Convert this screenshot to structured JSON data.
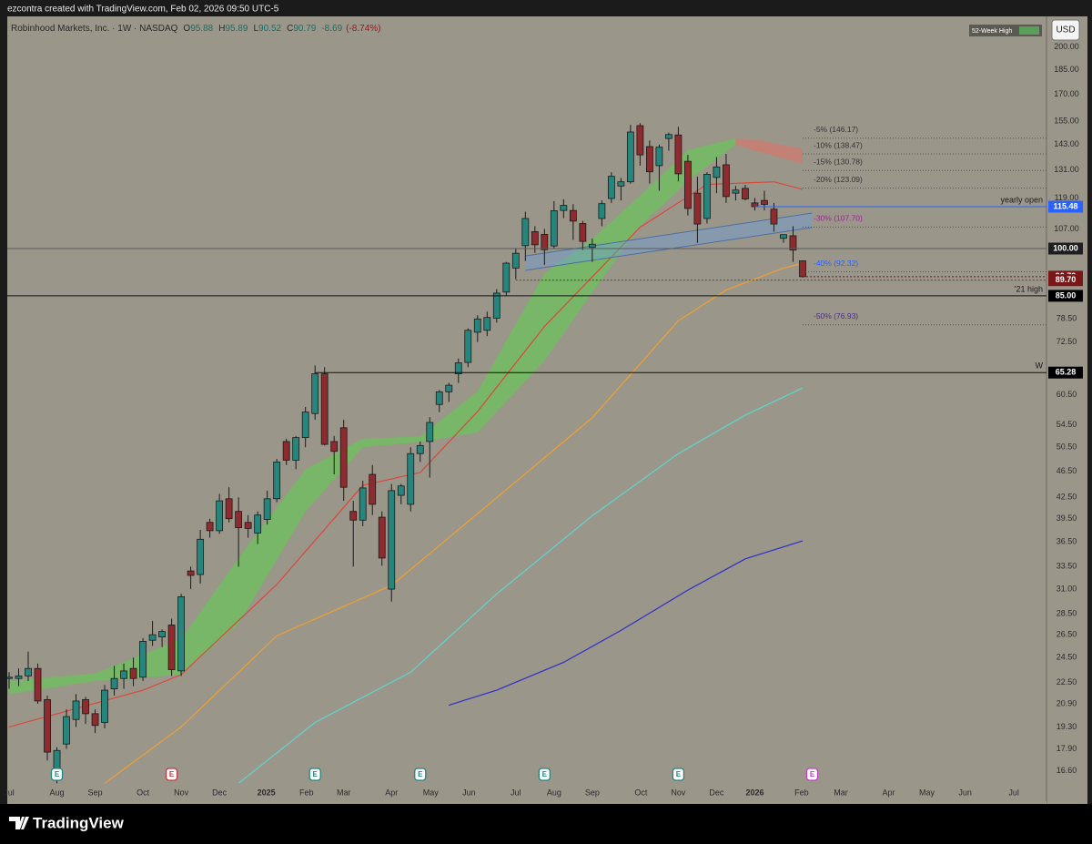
{
  "header": {
    "credit": "ezcontra created with TradingView.com, Feb 02, 2026 09:50 UTC-5",
    "logo": "TradingView",
    "currency": "USD",
    "legend_chip": "52-Week High"
  },
  "chart_data": {
    "type": "candlestick",
    "title": "Robinhood Markets, Inc. · 1W · NASDAQ",
    "quote": {
      "open": {
        "key": "O",
        "value": 95.88
      },
      "high": {
        "key": "H",
        "value": 95.89
      },
      "low": {
        "key": "L",
        "value": 90.52
      },
      "close": {
        "key": "C",
        "value": 90.79
      },
      "change": -8.69,
      "change_pct": {
        "value": -8.74,
        "label": "(-8.74%)"
      }
    },
    "log_scale": true,
    "grid": false,
    "xlim": [
      -0.19,
      108.51
    ],
    "ylim": [
      14.95,
      222.2
    ],
    "xticks": [
      {
        "value": 0,
        "label": "Jul"
      },
      {
        "value": 5,
        "label": "Aug"
      },
      {
        "value": 9,
        "label": "Sep"
      },
      {
        "value": 14,
        "label": "Oct"
      },
      {
        "value": 18,
        "label": "Nov"
      },
      {
        "value": 22,
        "label": "Dec"
      },
      {
        "value": 26.9,
        "label": "2025",
        "bold": true
      },
      {
        "value": 31.1,
        "label": "Feb"
      },
      {
        "value": 35,
        "label": "Mar"
      },
      {
        "value": 40,
        "label": "Apr"
      },
      {
        "value": 44.1,
        "label": "May"
      },
      {
        "value": 48.1,
        "label": "Jun"
      },
      {
        "value": 53,
        "label": "Jul"
      },
      {
        "value": 57,
        "label": "Aug"
      },
      {
        "value": 61,
        "label": "Sep"
      },
      {
        "value": 66.1,
        "label": "Oct"
      },
      {
        "value": 70,
        "label": "Nov"
      },
      {
        "value": 74,
        "label": "Dec"
      },
      {
        "value": 78,
        "label": "2026",
        "bold": true
      },
      {
        "value": 82.9,
        "label": "Feb"
      },
      {
        "value": 87,
        "label": "Mar"
      },
      {
        "value": 92,
        "label": "Apr"
      },
      {
        "value": 96,
        "label": "May"
      },
      {
        "value": 100,
        "label": "Jun"
      },
      {
        "value": 105.1,
        "label": "Jul"
      }
    ],
    "yticks": [
      {
        "value": 200,
        "label": "200.00"
      },
      {
        "value": 185,
        "label": "185.00"
      },
      {
        "value": 170,
        "label": "170.00"
      },
      {
        "value": 155,
        "label": "155.00"
      },
      {
        "value": 143,
        "label": "143.00"
      },
      {
        "value": 131,
        "label": "131.00"
      },
      {
        "value": 119,
        "label": "119.00"
      },
      {
        "value": 107,
        "label": "107.00"
      },
      {
        "value": 78.5,
        "label": "78.50"
      },
      {
        "value": 72.5,
        "label": "72.50"
      },
      {
        "value": 60.5,
        "label": "60.50"
      },
      {
        "value": 54.5,
        "label": "54.50"
      },
      {
        "value": 50.5,
        "label": "50.50"
      },
      {
        "value": 46.5,
        "label": "46.50"
      },
      {
        "value": 42.5,
        "label": "42.50"
      },
      {
        "value": 39.5,
        "label": "39.50"
      },
      {
        "value": 36.5,
        "label": "36.50"
      },
      {
        "value": 33.5,
        "label": "33.50"
      },
      {
        "value": 31,
        "label": "31.00"
      },
      {
        "value": 28.5,
        "label": "28.50"
      },
      {
        "value": 26.5,
        "label": "26.50"
      },
      {
        "value": 24.5,
        "label": "24.50"
      },
      {
        "value": 22.5,
        "label": "22.50"
      },
      {
        "value": 20.9,
        "label": "20.90"
      },
      {
        "value": 19.3,
        "label": "19.30"
      },
      {
        "value": 17.9,
        "label": "17.90"
      },
      {
        "value": 16.6,
        "label": "16.60"
      }
    ],
    "candles": {
      "up_color": "#26857c",
      "down_color": "#8e2b2f",
      "x": [
        0,
        1,
        2,
        3,
        4,
        5,
        6,
        7,
        8,
        9,
        10,
        11,
        12,
        13,
        14,
        15,
        16,
        17,
        18,
        19,
        20,
        21,
        22,
        23,
        24,
        25,
        26,
        27,
        28,
        29,
        30,
        31,
        32,
        33,
        34,
        35,
        36,
        37,
        38,
        39,
        40,
        41,
        42,
        43,
        44,
        45,
        46,
        47,
        48,
        49,
        50,
        51,
        52,
        53,
        54,
        55,
        56,
        57,
        58,
        59,
        60,
        61,
        62,
        63,
        64,
        65,
        66,
        67,
        68,
        69,
        70,
        71,
        72,
        73,
        74,
        75,
        76,
        77,
        78,
        79,
        80,
        81,
        82,
        83
      ],
      "open": [
        22.8,
        22.8,
        23.0,
        23.6,
        21.2,
        16.6,
        18.2,
        19.8,
        21.2,
        20.2,
        19.6,
        22.0,
        22.8,
        23.6,
        22.9,
        26.0,
        26.3,
        27.4,
        23.4,
        33.0,
        32.6,
        39.0,
        37.9,
        42.3,
        40.5,
        39.0,
        37.6,
        39.4,
        42.3,
        51.5,
        48.3,
        52.2,
        56.7,
        65.0,
        51.5,
        54.0,
        40.5,
        39.3,
        46.0,
        39.7,
        31.0,
        42.8,
        41.5,
        49.4,
        51.5,
        58.5,
        61.1,
        65.0,
        67.6,
        75.0,
        75.5,
        78.7,
        86.1,
        93.5,
        101.0,
        106.0,
        105.0,
        100.9,
        114.0,
        114.0,
        109.0,
        100.4,
        110.9,
        118.8,
        124.0,
        125.8,
        152.6,
        142.0,
        133.0,
        146.0,
        147.8,
        135.0,
        121.0,
        110.9,
        127.7,
        133.4,
        121.0,
        123.0,
        117.0,
        118.0,
        114.5,
        103.6,
        104.5,
        95.88
      ],
      "high": [
        23.3,
        23.6,
        25.0,
        24.0,
        21.5,
        18.0,
        20.5,
        21.6,
        21.4,
        20.5,
        22.3,
        23.8,
        24.0,
        24.5,
        26.2,
        27.8,
        27.0,
        28.0,
        30.5,
        33.5,
        38.0,
        39.5,
        43.0,
        44.0,
        42.5,
        40.0,
        40.5,
        43.5,
        48.5,
        52.0,
        52.5,
        58.0,
        66.9,
        66.5,
        52.5,
        55.5,
        42.0,
        45.0,
        47.5,
        40.5,
        44.5,
        44.5,
        50.5,
        51.5,
        56.0,
        61.5,
        63.0,
        68.5,
        76.0,
        79.5,
        80.5,
        87.0,
        95.5,
        100.0,
        113.5,
        108.0,
        107.0,
        117.7,
        118.5,
        116.5,
        110.0,
        103.5,
        118.0,
        130.0,
        127.5,
        153.0,
        153.9,
        145.0,
        143.0,
        149.0,
        152.0,
        138.0,
        128.0,
        130.0,
        137.0,
        138.5,
        124.0,
        124.5,
        119.0,
        122.0,
        117.0,
        105.0,
        108.0,
        95.89
      ],
      "low": [
        22.0,
        22.2,
        22.6,
        20.9,
        17.2,
        15.9,
        17.9,
        19.3,
        19.5,
        18.9,
        19.2,
        21.5,
        22.0,
        22.2,
        22.6,
        25.5,
        25.4,
        23.0,
        23.0,
        31.0,
        31.6,
        37.0,
        37.5,
        39.0,
        33.5,
        37.0,
        36.2,
        38.7,
        41.8,
        47.5,
        46.8,
        50.5,
        55.5,
        50.8,
        46.0,
        42.0,
        33.5,
        38.5,
        40.0,
        33.6,
        29.7,
        41.5,
        40.5,
        48.0,
        45.5,
        57.0,
        59.0,
        63.0,
        66.5,
        72.5,
        74.0,
        77.5,
        85.0,
        90.0,
        95.8,
        98.5,
        94.5,
        100.0,
        111.0,
        103.0,
        99.5,
        95.5,
        108.0,
        117.0,
        118.0,
        125.0,
        133.0,
        125.0,
        122.0,
        140.0,
        126.0,
        112.0,
        102.0,
        109.0,
        121.0,
        117.0,
        118.0,
        118.0,
        114.0,
        114.0,
        106.0,
        102.0,
        95.5,
        90.52
      ],
      "close": [
        22.9,
        23.0,
        23.6,
        21.1,
        17.7,
        17.8,
        20.0,
        21.1,
        20.2,
        19.4,
        21.9,
        22.8,
        23.4,
        22.8,
        25.9,
        26.5,
        26.8,
        23.5,
        30.2,
        32.5,
        36.8,
        37.9,
        42.0,
        39.5,
        38.3,
        38.2,
        40.0,
        42.3,
        48.0,
        48.3,
        52.2,
        57.0,
        65.0,
        51.0,
        49.8,
        44.0,
        39.3,
        43.9,
        41.5,
        34.5,
        43.5,
        44.2,
        49.4,
        50.8,
        55.0,
        61.1,
        62.5,
        67.5,
        75.5,
        78.5,
        78.9,
        85.8,
        95.1,
        98.4,
        110.9,
        101.3,
        99.6,
        113.9,
        116.0,
        109.9,
        102.5,
        101.5,
        116.7,
        128.2,
        125.8,
        149.3,
        138.0,
        130.2,
        141.7,
        148.0,
        129.3,
        114.8,
        108.8,
        129.1,
        132.4,
        119.6,
        122.3,
        118.6,
        115.5,
        116.4,
        108.8,
        104.9,
        99.48,
        90.79
      ]
    },
    "ribbons": [
      {
        "color": "#6cc05c",
        "x": [
          0,
          9,
          18,
          24,
          31,
          37,
          43,
          49,
          56,
          61,
          66,
          71,
          76
        ],
        "upper": [
          22.6,
          23.2,
          26.1,
          34.5,
          46.8,
          52.0,
          52.4,
          61.2,
          91.8,
          103.4,
          120,
          140.4,
          146
        ],
        "lower": [
          21.6,
          22.6,
          23.1,
          27.5,
          40.5,
          50.5,
          51.4,
          53.1,
          68,
          86,
          108,
          126,
          143
        ]
      },
      {
        "color": "#d0786e",
        "x": [
          76,
          78,
          83
        ],
        "upper": [
          146,
          145.5,
          141
        ],
        "lower": [
          143,
          140,
          133.9
        ]
      }
    ],
    "moving_averages": [
      {
        "color": "#d9473d",
        "x": [
          0,
          14,
          18,
          28,
          37,
          43,
          49,
          56,
          66,
          73,
          80,
          83
        ],
        "values": [
          19.3,
          21.9,
          23.1,
          31.5,
          44.3,
          46.3,
          57.1,
          76.5,
          107.6,
          124.7,
          125.8,
          122.6
        ]
      },
      {
        "color": "#f0a030",
        "x": [
          10,
          18,
          28,
          40,
          50,
          61,
          70,
          75,
          81,
          83
        ],
        "values": [
          15.9,
          19.3,
          26.4,
          31.4,
          41.3,
          55.9,
          78,
          86.7,
          93.5,
          95
        ]
      },
      {
        "color": "#5fd6d0",
        "x": [
          24,
          32,
          42,
          51,
          61,
          70,
          77,
          83
        ],
        "values": [
          15.9,
          19.6,
          23.3,
          30.5,
          39.9,
          49.4,
          56.4,
          61.9
        ]
      },
      {
        "color": "#2c2fc8",
        "x": [
          46,
          51,
          58,
          64,
          71,
          77,
          83
        ],
        "values": [
          20.8,
          21.9,
          24.1,
          26.9,
          30.9,
          34.4,
          36.6
        ]
      }
    ],
    "channel": {
      "color": "#6f9fd8",
      "x": [
        54,
        84
      ],
      "upper": [
        97.5,
        113
      ],
      "lower": [
        92.8,
        107.5
      ]
    },
    "levels": [
      {
        "value": 146.17,
        "label": "-5% (146.17)",
        "color": "#333333"
      },
      {
        "value": 138.47,
        "label": "-10% (138.47)",
        "color": "#333333"
      },
      {
        "value": 130.78,
        "label": "-15% (130.78)",
        "color": "#333333"
      },
      {
        "value": 123.09,
        "label": "-20% (123.09)",
        "color": "#333333"
      },
      {
        "value": 107.7,
        "label": "-30% (107.70)",
        "color": "#a020a0"
      },
      {
        "value": 92.32,
        "label": "-40% (92.32)",
        "color": "#2962ff"
      },
      {
        "value": 76.93,
        "label": "-50% (76.93)",
        "color": "#4a2c8a"
      }
    ],
    "levels_from": 83,
    "price_lines": [
      {
        "price": 115.48,
        "color": "#2962ff",
        "tag_color": "#2962ff",
        "from": 78,
        "note": "yearly open"
      },
      {
        "price": {
          "value": 100,
          "label": "100.00"
        },
        "color": "#5a5a5a",
        "tag_color": "#1e1e1e"
      },
      {
        "price": 90.79,
        "color": "#6d1b1b",
        "tag_color": "#7a1618",
        "from": 83,
        "dash": true
      },
      {
        "price": {
          "value": 89.7,
          "label": "89.70"
        },
        "color": "#444444",
        "tag_color": "#7a1618",
        "from": 53,
        "dash": true
      },
      {
        "price": {
          "value": 85,
          "label": "85.00"
        },
        "color": "#111111",
        "tag_color": "#000000",
        "note": "'21 high"
      },
      {
        "price": 65.28,
        "color": "#111111",
        "tag_color": "#000000",
        "from": 32,
        "note": "W"
      }
    ],
    "events": {
      "x": [
        5,
        17,
        32,
        43,
        56,
        70,
        84
      ],
      "labels": [
        "E",
        "E",
        "E",
        "E",
        "E",
        "E",
        "E"
      ],
      "colors": [
        "#26857c",
        "#c0393f",
        "#26857c",
        "#26857c",
        "#26857c",
        "#26857c",
        "#c040c0"
      ]
    }
  }
}
